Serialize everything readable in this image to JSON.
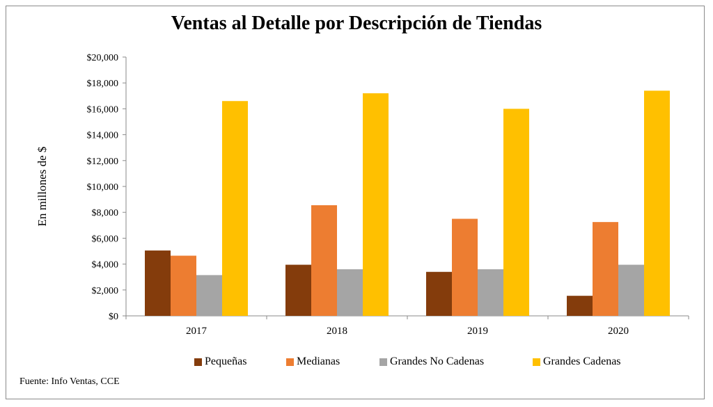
{
  "chart_data": {
    "type": "bar",
    "title": "Ventas al Detalle por Descripción de Tiendas",
    "xlabel": "",
    "ylabel": "En millones de $",
    "categories": [
      "2017",
      "2018",
      "2019",
      "2020"
    ],
    "ylim": [
      0,
      20000
    ],
    "yticks": [
      "$0",
      "$2,000",
      "$4,000",
      "$6,000",
      "$8,000",
      "$10,000",
      "$12,000",
      "$14,000",
      "$16,000",
      "$18,000",
      "$20,000"
    ],
    "ytick_values": [
      0,
      2000,
      4000,
      6000,
      8000,
      10000,
      12000,
      14000,
      16000,
      18000,
      20000
    ],
    "grid": false,
    "legend_position": "bottom",
    "series": [
      {
        "name": "Pequeñas",
        "color": "#843c0c",
        "values": [
          5050,
          3950,
          3400,
          1550
        ]
      },
      {
        "name": "Medianas",
        "color": "#ed7d31",
        "values": [
          4650,
          8550,
          7500,
          7250
        ]
      },
      {
        "name": "Grandes No Cadenas",
        "color": "#a5a5a5",
        "values": [
          3150,
          3600,
          3600,
          3950
        ]
      },
      {
        "name": "Grandes Cadenas",
        "color": "#ffc000",
        "values": [
          16600,
          17200,
          16000,
          17400
        ]
      }
    ]
  },
  "source_note": "Fuente: Info Ventas, CCE"
}
